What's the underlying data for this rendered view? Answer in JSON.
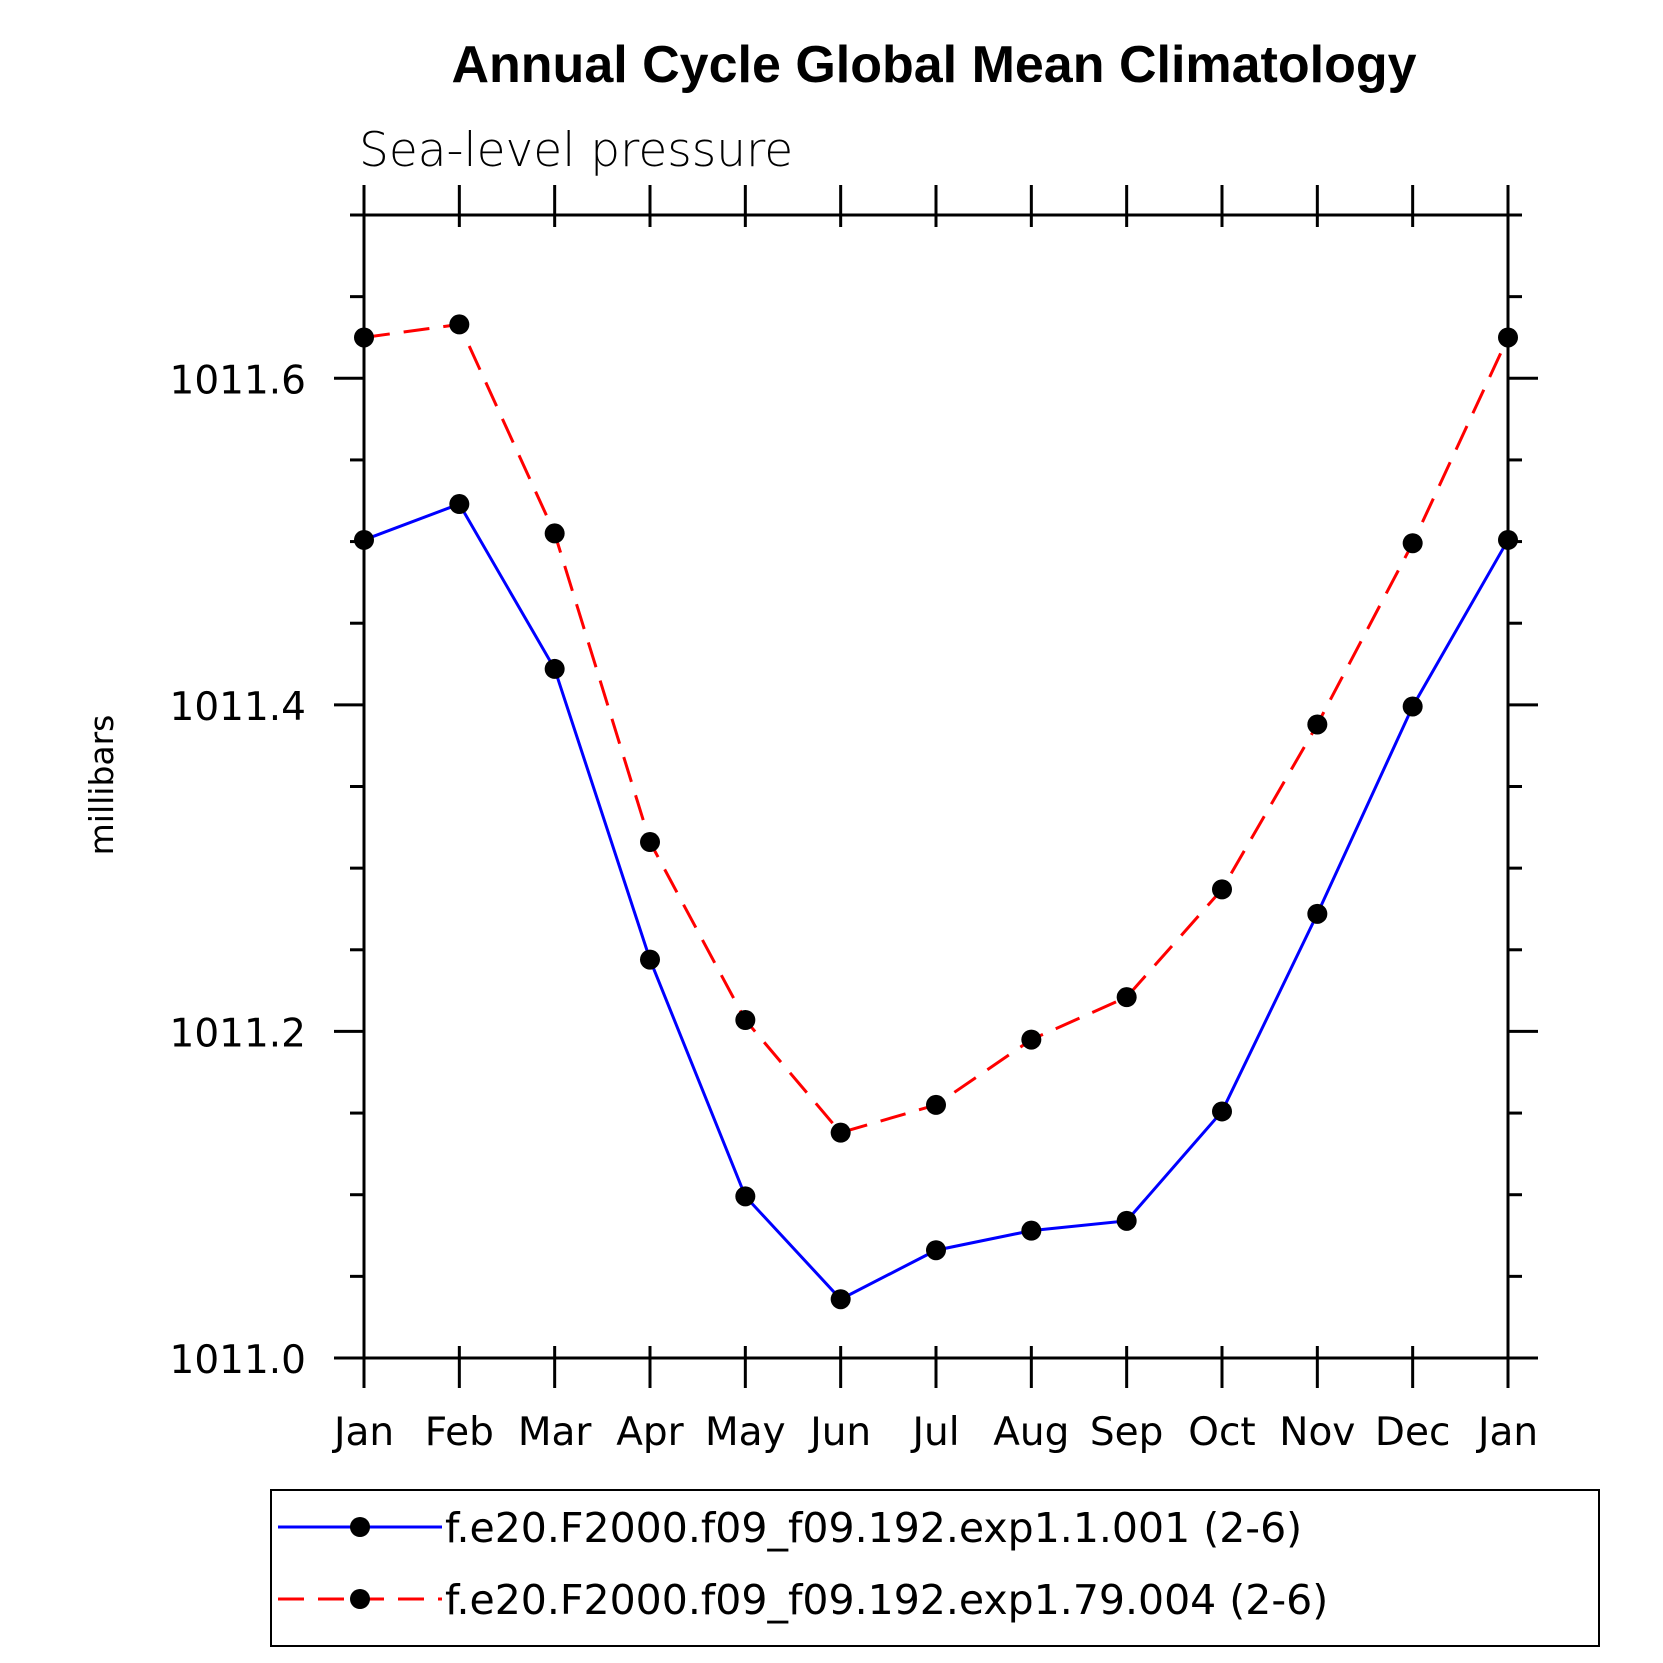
{
  "chart_data": {
    "type": "line",
    "title": "Annual Cycle Global Mean Climatology",
    "subtitle": "Sea-level pressure",
    "ylabel": "millibars",
    "xlabel": "",
    "categories": [
      "Jan",
      "Feb",
      "Mar",
      "Apr",
      "May",
      "Jun",
      "Jul",
      "Aug",
      "Sep",
      "Oct",
      "Nov",
      "Dec",
      "Jan"
    ],
    "ylim": [
      1011.0,
      1011.7
    ],
    "yticks": [
      "1011.0",
      "1011.2",
      "1011.4",
      "1011.6"
    ],
    "ytick_values": [
      1011.0,
      1011.2,
      1011.4,
      1011.6
    ],
    "series": [
      {
        "name": "f.e20.F2000.f09_f09.192.exp1.1.001 (2-6)",
        "color": "#0000ff",
        "dash": "solid",
        "marker": "circle",
        "values": [
          1011.501,
          1011.523,
          1011.422,
          1011.244,
          1011.099,
          1011.036,
          1011.066,
          1011.078,
          1011.084,
          1011.151,
          1011.272,
          1011.399,
          1011.501
        ]
      },
      {
        "name": "f.e20.F2000.f09_f09.192.exp1.79.004 (2-6)",
        "color": "#ff0000",
        "dash": "dashed",
        "marker": "circle",
        "values": [
          1011.625,
          1011.633,
          1011.505,
          1011.316,
          1011.207,
          1011.138,
          1011.155,
          1011.195,
          1011.221,
          1011.287,
          1011.388,
          1011.499,
          1011.625
        ]
      }
    ],
    "legend": {
      "placement": "bottom",
      "frame": true
    },
    "grid": false
  }
}
